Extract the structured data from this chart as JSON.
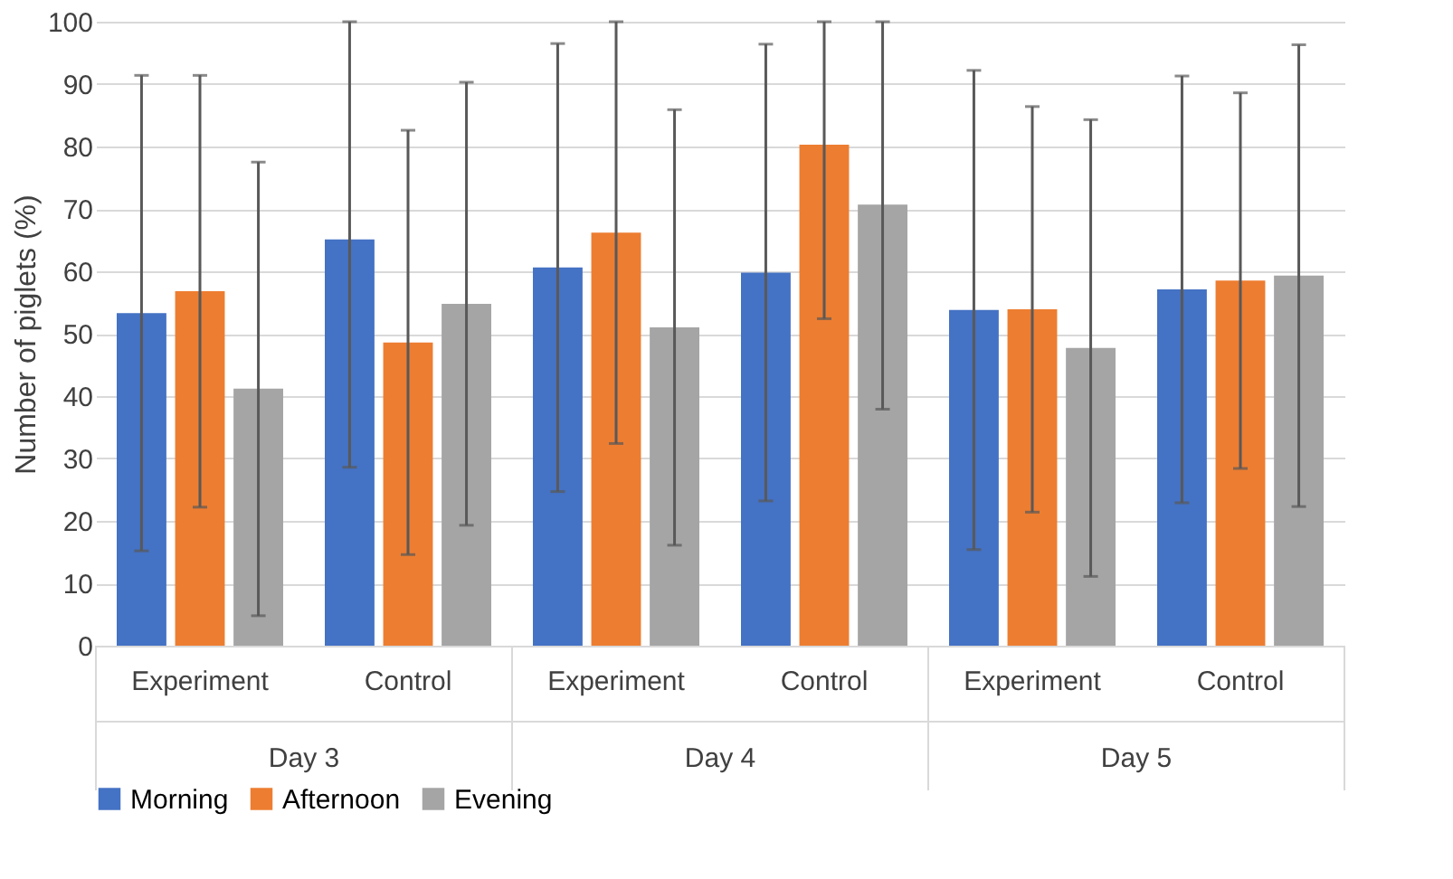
{
  "chart_data": {
    "type": "bar",
    "ylabel": "Number of piglets (%)",
    "categories": [
      "Experiment",
      "Control",
      "Experiment",
      "Control",
      "Experiment",
      "Control"
    ],
    "series": [
      {
        "name": "Morning",
        "color": "#4472c4",
        "values": [
          53.3,
          65.1,
          60.6,
          59.8,
          53.8,
          57.1
        ],
        "errors": [
          [
            15.2,
            91.4
          ],
          [
            28.6,
            100
          ],
          [
            24.7,
            96.5
          ],
          [
            23.2,
            96.4
          ],
          [
            15.4,
            92.2
          ],
          [
            22.9,
            91.3
          ]
        ]
      },
      {
        "name": "Afternoon",
        "color": "#ed7d31",
        "values": [
          56.8,
          48.6,
          66.2,
          80.3,
          53.9,
          58.5
        ],
        "errors": [
          [
            22.2,
            91.4
          ],
          [
            14.6,
            82.6
          ],
          [
            32.4,
            100
          ],
          [
            52.4,
            100
          ],
          [
            21.4,
            86.4
          ],
          [
            28.4,
            88.6
          ]
        ]
      },
      {
        "name": "Evening",
        "color": "#a5a5a5",
        "values": [
          41.2,
          54.8,
          51.0,
          70.7,
          47.7,
          59.3
        ],
        "errors": [
          [
            4.8,
            77.5
          ],
          [
            19.3,
            90.3
          ],
          [
            16.1,
            85.9
          ],
          [
            37.9,
            100
          ],
          [
            11.1,
            84.3
          ],
          [
            22.3,
            96.3
          ]
        ]
      }
    ],
    "annotations": [
      "Day 3",
      "Day 4",
      "Day 5"
    ],
    "ylim": [
      0,
      100
    ],
    "yticks": [
      0,
      10,
      20,
      30,
      40,
      50,
      60,
      70,
      80,
      90,
      100
    ],
    "grid": "y",
    "legend": "bottom"
  }
}
